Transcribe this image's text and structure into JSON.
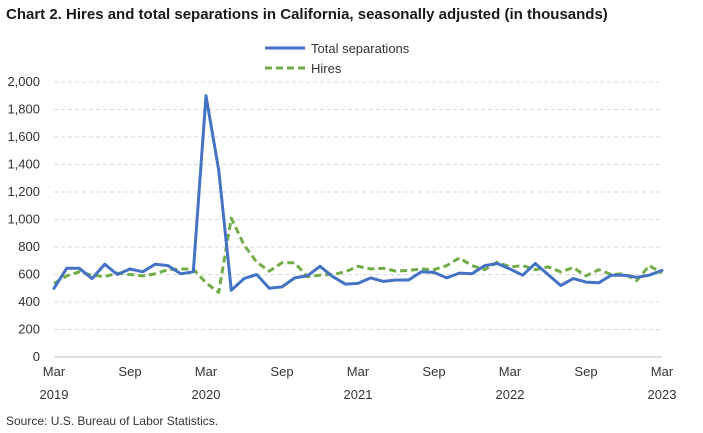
{
  "title": "Chart 2. Hires and total separations in California, seasonally adjusted (in thousands)",
  "source": "Source: U.S. Bureau of Labor Statistics.",
  "colors": {
    "total_separations": "#4472c4",
    "hires": "#70ad47",
    "grid": "#d9d9d9"
  },
  "chart_data": {
    "type": "line",
    "xlabel": "",
    "ylabel": "",
    "ylim": [
      0,
      2000
    ],
    "yticks": [
      "0",
      "200",
      "400",
      "600",
      "800",
      "1,000",
      "1,200",
      "1,400",
      "1,600",
      "1,800",
      "2,000"
    ],
    "ytick_values": [
      0,
      200,
      400,
      600,
      800,
      1000,
      1200,
      1400,
      1600,
      1800,
      2000
    ],
    "grid": true,
    "legend_position": "top-center",
    "x_ticks": [
      {
        "index": 0,
        "month": "Mar",
        "year": "2019"
      },
      {
        "index": 6,
        "month": "Sep",
        "year": ""
      },
      {
        "index": 12,
        "month": "Mar",
        "year": "2020"
      },
      {
        "index": 18,
        "month": "Sep",
        "year": ""
      },
      {
        "index": 24,
        "month": "Mar",
        "year": "2021"
      },
      {
        "index": 30,
        "month": "Sep",
        "year": ""
      },
      {
        "index": 36,
        "month": "Mar",
        "year": "2022"
      },
      {
        "index": 42,
        "month": "Sep",
        "year": ""
      },
      {
        "index": 48,
        "month": "Mar",
        "year": "2023"
      }
    ],
    "x": [
      "2019-03",
      "2019-04",
      "2019-05",
      "2019-06",
      "2019-07",
      "2019-08",
      "2019-09",
      "2019-10",
      "2019-11",
      "2019-12",
      "2020-01",
      "2020-02",
      "2020-03",
      "2020-04",
      "2020-05",
      "2020-06",
      "2020-07",
      "2020-08",
      "2020-09",
      "2020-10",
      "2020-11",
      "2020-12",
      "2021-01",
      "2021-02",
      "2021-03",
      "2021-04",
      "2021-05",
      "2021-06",
      "2021-07",
      "2021-08",
      "2021-09",
      "2021-10",
      "2021-11",
      "2021-12",
      "2022-01",
      "2022-02",
      "2022-03",
      "2022-04",
      "2022-05",
      "2022-06",
      "2022-07",
      "2022-08",
      "2022-09",
      "2022-10",
      "2022-11",
      "2022-12",
      "2023-01",
      "2023-02",
      "2023-03"
    ],
    "series": [
      {
        "name": "Total separations",
        "style": "solid",
        "values": [
          500,
          645,
          645,
          570,
          675,
          600,
          640,
          620,
          675,
          665,
          605,
          620,
          1900,
          1360,
          485,
          570,
          600,
          500,
          510,
          575,
          590,
          660,
          585,
          530,
          535,
          575,
          550,
          560,
          560,
          620,
          615,
          575,
          610,
          605,
          665,
          680,
          640,
          595,
          680,
          600,
          520,
          570,
          545,
          540,
          595,
          595,
          580,
          595,
          630
        ]
      },
      {
        "name": "Hires",
        "style": "dashed",
        "values": [
          535,
          590,
          620,
          595,
          585,
          610,
          600,
          590,
          605,
          635,
          640,
          640,
          540,
          470,
          1010,
          815,
          690,
          625,
          685,
          685,
          585,
          595,
          600,
          620,
          660,
          640,
          645,
          625,
          630,
          640,
          635,
          665,
          720,
          665,
          635,
          690,
          655,
          665,
          635,
          655,
          620,
          650,
          590,
          635,
          600,
          605,
          555,
          665,
          610
        ]
      }
    ]
  }
}
